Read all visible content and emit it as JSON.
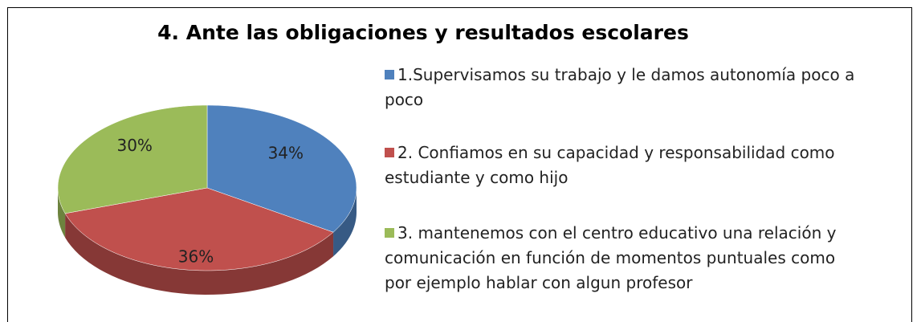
{
  "chart_data": {
    "type": "pie",
    "title": "4. Ante las obligaciones y resultados escolares",
    "categories": [
      "1.Supervisamos su trabajo y le damos autonomía poco a poco",
      "2. Confiamos en su capacidad y responsabilidad como estudiante y como hijo",
      "3. mantenemos con el centro educativo una relación y comunicación en función de momentos puntuales como por ejemplo hablar con algun profesor"
    ],
    "values": [
      34,
      36,
      30
    ],
    "value_labels": [
      "34%",
      "36%",
      "30%"
    ],
    "colors": [
      "#4f81bd",
      "#c0504d",
      "#9bbb59"
    ],
    "legend": "right"
  }
}
